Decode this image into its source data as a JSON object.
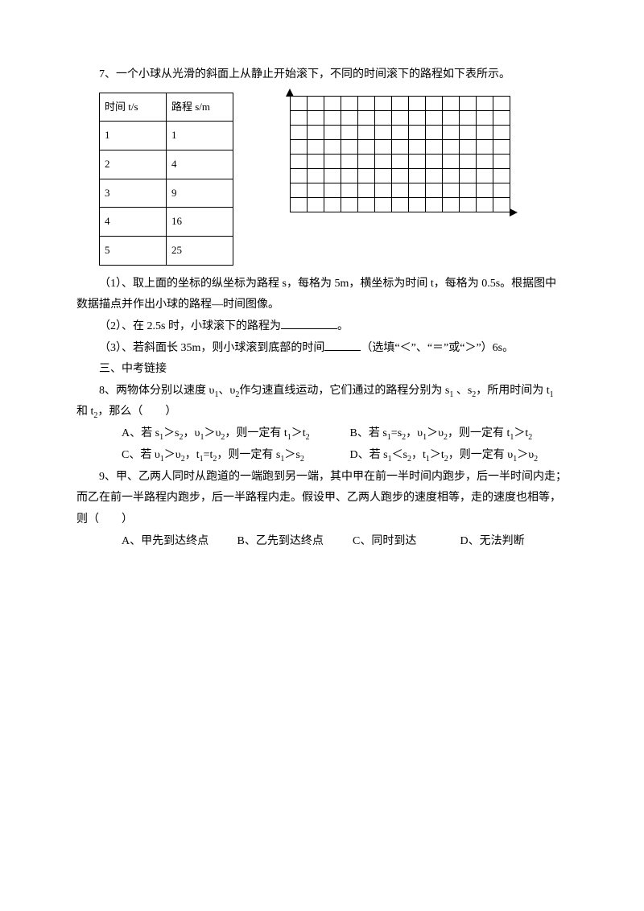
{
  "q7": {
    "stem": "7、一个小球从光滑的斜面上从静止开始滚下，不同的时间滚下的路程如下表所示。",
    "table": {
      "head_c1": "时间 t/s",
      "head_c2": "路程 s/m",
      "rows": [
        {
          "t": "1",
          "s": "1"
        },
        {
          "t": "2",
          "s": "4"
        },
        {
          "t": "3",
          "s": "9"
        },
        {
          "t": "4",
          "s": "16"
        },
        {
          "t": "5",
          "s": "25"
        }
      ]
    },
    "grid": {
      "rows": 8,
      "cols": 13
    },
    "sub1": "（1）、取上面的坐标的纵坐标为路程 s，每格为 5m，横坐标为时间 t，每格为 0.5s。根据图中数据描点并作出小球的路程—时间图像。",
    "sub2_a": "（2）、在 2.5s 时，小球滚下的路程为",
    "sub2_b": "。",
    "sub3_a": "（3）、若斜面长 35m，则小球滚到底部的时间",
    "sub3_b": "（选填“＜”、“＝”或“＞”）6s。"
  },
  "sec3": "三、中考链接",
  "q8": {
    "stem_a": "8、两物体分别以速度 υ",
    "stem_b": "、υ",
    "stem_c": "作匀速直线运动，它们通过的路程分别为 s",
    "stem_d": " 、s",
    "stem_e": "，所用时间为 t",
    "stem_f": " 和 t",
    "stem_g": "，那么（　　）",
    "optA_a": "A、若 s",
    "optA_b": "＞s",
    "optA_c": "，υ",
    "optA_d": "＞υ",
    "optA_e": "，则一定有 t",
    "optA_f": "＞t",
    "optB_a": "B、若 s",
    "optB_b": "=s",
    "optB_c": "，υ",
    "optB_d": "＞υ",
    "optB_e": "，则一定有 t",
    "optB_f": "＞t",
    "optC_a": "C、若 υ",
    "optC_b": "＞υ",
    "optC_c": "，t",
    "optC_d": "=t",
    "optC_e": "，则一定有 s",
    "optC_f": "＞s",
    "optD_a": "D、若 s",
    "optD_b": "＜s",
    "optD_c": "，t",
    "optD_d": "＞t",
    "optD_e": "，则一定有 υ",
    "optD_f": "＞υ"
  },
  "q9": {
    "stem": "9、甲、乙两人同时从跑道的一端跑到另一端，其中甲在前一半时间内跑步，后一半时间内走；而乙在前一半路程内跑步，后一半路程内走。假设甲、乙两人跑步的速度相等，走的速度也相等，则（　　）",
    "A": "A、甲先到达终点",
    "B": "B、乙先到达终点",
    "C": "C、同时到达",
    "D": "D、无法判断"
  }
}
